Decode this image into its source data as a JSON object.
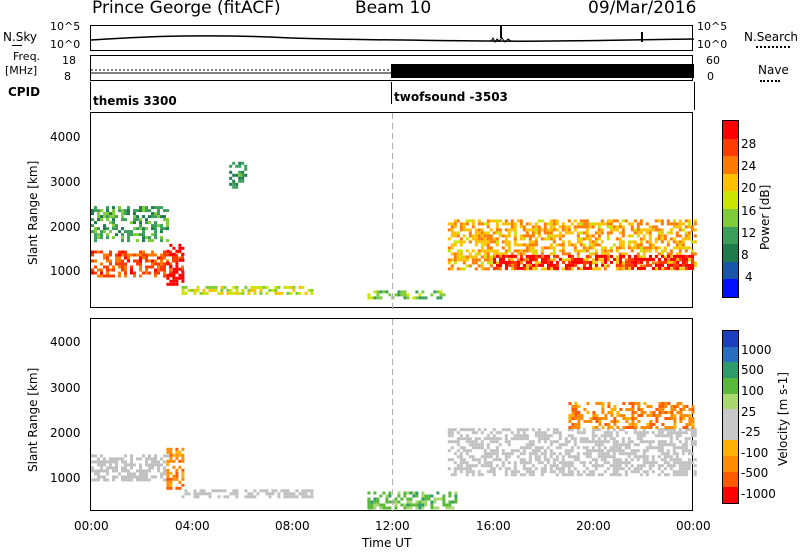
{
  "header": {
    "station": "Prince George (fitACF)",
    "beam": "Beam 10",
    "date": "09/Mar/2016"
  },
  "top_labels": {
    "nsky": "N.Sky",
    "nsky_ticks": [
      "10^5",
      "10^0"
    ],
    "nsearch": "N.Search",
    "nsearch_ticks": [
      "10^5",
      "10^0"
    ],
    "freq": "Freq.",
    "freq_unit": "[MHz]",
    "freq_ticks": [
      "18",
      "8"
    ],
    "nave": "Nave",
    "nave_ticks": [
      "60",
      "0"
    ],
    "cpid": "CPID",
    "cpid_left": "themis 3300",
    "cpid_right": "twofsound -3503"
  },
  "axes": {
    "ylabel": "Slant Range [km]",
    "y_ticks": [
      "4000",
      "3000",
      "2000",
      "1000"
    ],
    "x_ticks": [
      "00:00",
      "04:00",
      "08:00",
      "12:00",
      "16:00",
      "20:00",
      "00:00"
    ],
    "xlabel": "Time UT"
  },
  "power_colorbar": {
    "label": "Power [dB]",
    "ticks": [
      "28",
      "24",
      "20",
      "16",
      "12",
      "8",
      "4"
    ],
    "colors": [
      "#ff0000",
      "#ff3c00",
      "#ff7a00",
      "#ffc000",
      "#c9e500",
      "#7fcc3a",
      "#3b9e5a",
      "#1f7a4c",
      "#1a56a8",
      "#0010ff"
    ]
  },
  "velocity_colorbar": {
    "label": "Velocity [m s-1]",
    "ticks": [
      "1000",
      "500",
      "100",
      "25",
      "-25",
      "-100",
      "-500",
      "-1000"
    ],
    "colors": [
      "#1b3fbf",
      "#2a6fbf",
      "#2f9a6a",
      "#5ab83a",
      "#a8d870",
      "#c8c8c8",
      "#c8c8c8",
      "#ffb000",
      "#ff8c00",
      "#ff5a00",
      "#ff0000"
    ]
  },
  "colors": {
    "ground_scatter": "#c0c0c0",
    "dashed_line": "#b0b0b0"
  },
  "chart_data": {
    "type": "heatmap",
    "x_range_hours": [
      0,
      24
    ],
    "y_range_km": [
      180,
      4600
    ],
    "cpid_change_hour": 12,
    "power_scatter_bands": [
      {
        "t_start": 0.0,
        "t_end": 3.6,
        "r_min": 950,
        "r_max": 1500,
        "power_db": 24
      },
      {
        "t_start": 0.0,
        "t_end": 3.0,
        "r_min": 1750,
        "r_max": 2500,
        "power_db": 10
      },
      {
        "t_start": 3.0,
        "t_end": 3.6,
        "r_min": 750,
        "r_max": 1650,
        "power_db": 30
      },
      {
        "t_start": 3.6,
        "t_end": 8.8,
        "r_min": 500,
        "r_max": 700,
        "power_db": 16
      },
      {
        "t_start": 5.5,
        "t_end": 6.2,
        "r_min": 2900,
        "r_max": 3500,
        "power_db": 8
      },
      {
        "t_start": 11.0,
        "t_end": 14.0,
        "r_min": 400,
        "r_max": 600,
        "power_db": 12
      },
      {
        "t_start": 14.2,
        "t_end": 24.0,
        "r_min": 1050,
        "r_max": 2200,
        "power_db": 20
      },
      {
        "t_start": 16.0,
        "t_end": 24.0,
        "r_min": 1100,
        "r_max": 1400,
        "power_db": 28
      }
    ],
    "velocity_scatter_bands": [
      {
        "t_start": 0.0,
        "t_end": 3.0,
        "r_min": 900,
        "r_max": 1500,
        "velocity": 0
      },
      {
        "t_start": 3.0,
        "t_end": 3.7,
        "r_min": 750,
        "r_max": 1650,
        "velocity": -300
      },
      {
        "t_start": 3.6,
        "t_end": 8.8,
        "r_min": 500,
        "r_max": 700,
        "velocity": 0
      },
      {
        "t_start": 11.0,
        "t_end": 14.5,
        "r_min": 300,
        "r_max": 650,
        "velocity": 150
      },
      {
        "t_start": 14.2,
        "t_end": 24.0,
        "r_min": 1050,
        "r_max": 2100,
        "velocity": 0
      },
      {
        "t_start": 19.0,
        "t_end": 24.0,
        "r_min": 2100,
        "r_max": 2700,
        "velocity": -200
      }
    ]
  }
}
